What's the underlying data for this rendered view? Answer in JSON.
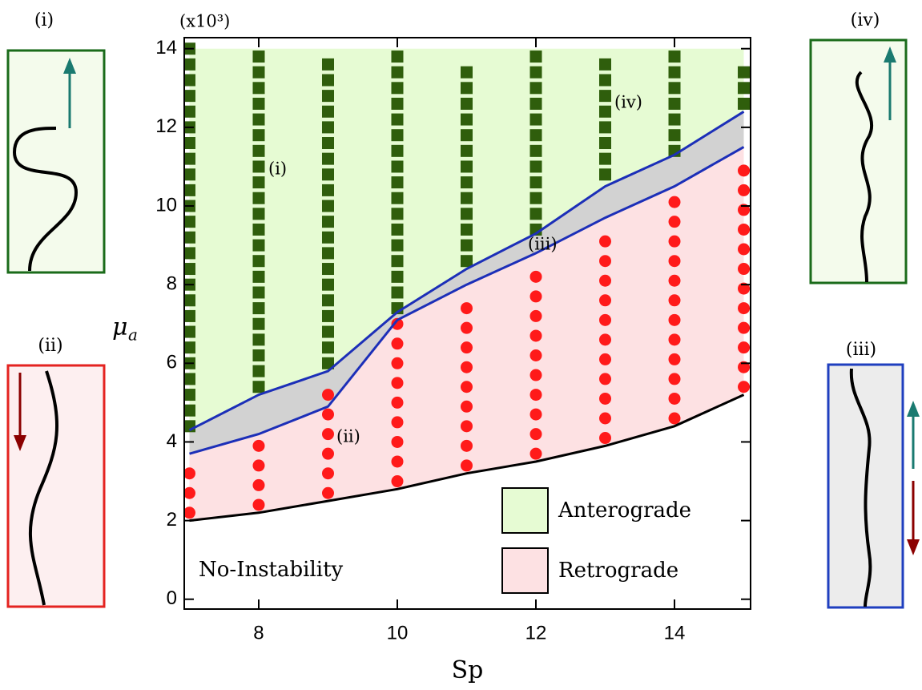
{
  "chart_data": {
    "type": "phase",
    "xlabel": "Sp",
    "ylabel": "μ",
    "ylabel_subscript": "a",
    "scale_label": "(x10³)",
    "xlim": [
      6.925,
      15.098
    ],
    "ylim": [
      -0.25,
      14.28
    ],
    "xticks": [
      8,
      10,
      12,
      14
    ],
    "yticks": [
      0,
      2,
      4,
      6,
      8,
      10,
      12,
      14
    ],
    "regions": [
      {
        "name": "Anterograde",
        "fill": "#e6fbd3"
      },
      {
        "name": "Retrograde",
        "fill": "#fde1e3"
      }
    ],
    "gap_fill": "#d2d2d2",
    "square_color": "#2f5e0c",
    "dot_color": "#ff1a1a",
    "curve_x": [
      7,
      8,
      9,
      10,
      11,
      12,
      13,
      14,
      15
    ],
    "curves": [
      {
        "color": "#000000",
        "y": [
          2.0,
          2.2,
          2.5,
          2.8,
          3.2,
          3.5,
          3.9,
          4.4,
          5.2
        ]
      },
      {
        "color": "#1c2fb8",
        "y": [
          3.7,
          4.2,
          4.9,
          7.1,
          8.0,
          8.8,
          9.7,
          10.5,
          11.5
        ]
      },
      {
        "color": "#1c2fb8",
        "y": [
          4.3,
          5.2,
          5.8,
          7.3,
          8.4,
          9.3,
          10.5,
          11.3,
          12.4
        ]
      }
    ],
    "anterograde_points": [
      {
        "x": 7,
        "y": [
          4.4,
          4.8,
          5.2,
          5.6,
          6.0,
          6.4,
          6.8,
          7.2,
          7.6,
          8.0,
          8.4,
          8.8,
          9.2,
          9.6,
          10.0,
          10.4,
          10.8,
          11.2,
          11.6,
          12.0,
          12.4,
          12.8,
          13.2,
          13.6,
          14.0
        ]
      },
      {
        "x": 8,
        "y": [
          5.4,
          5.8,
          6.2,
          6.6,
          7.0,
          7.4,
          7.8,
          8.2,
          8.6,
          9.0,
          9.4,
          9.8,
          10.2,
          10.6,
          11.0,
          11.4,
          11.8,
          12.2,
          12.6,
          13.0,
          13.4,
          13.8
        ]
      },
      {
        "x": 9,
        "y": [
          6.0,
          6.4,
          6.8,
          7.2,
          7.6,
          8.0,
          8.4,
          8.8,
          9.2,
          9.6,
          10.0,
          10.4,
          10.8,
          11.2,
          11.6,
          12.0,
          12.4,
          12.8,
          13.2,
          13.6
        ]
      },
      {
        "x": 10,
        "y": [
          7.4,
          7.8,
          8.2,
          8.6,
          9.0,
          9.4,
          9.8,
          10.2,
          10.6,
          11.0,
          11.4,
          11.8,
          12.2,
          12.6,
          13.0,
          13.4,
          13.8
        ]
      },
      {
        "x": 11,
        "y": [
          8.6,
          9.0,
          9.4,
          9.8,
          10.2,
          10.6,
          11.0,
          11.4,
          11.8,
          12.2,
          12.6,
          13.0,
          13.4
        ]
      },
      {
        "x": 12,
        "y": [
          9.4,
          9.8,
          10.2,
          10.6,
          11.0,
          11.4,
          11.8,
          12.2,
          12.6,
          13.0,
          13.4,
          13.8
        ]
      },
      {
        "x": 13,
        "y": [
          10.8,
          11.2,
          11.6,
          12.0,
          12.4,
          12.8,
          13.2,
          13.6
        ]
      },
      {
        "x": 14,
        "y": [
          11.4,
          11.8,
          12.2,
          12.6,
          13.0,
          13.4,
          13.8
        ]
      },
      {
        "x": 15,
        "y": [
          12.6,
          13.0,
          13.4
        ]
      }
    ],
    "retrograde_points": [
      {
        "x": 7,
        "y": [
          2.2,
          2.7,
          3.2
        ]
      },
      {
        "x": 8,
        "y": [
          2.4,
          2.9,
          3.4,
          3.9
        ]
      },
      {
        "x": 9,
        "y": [
          2.7,
          3.2,
          3.7,
          4.2,
          4.7,
          5.2
        ]
      },
      {
        "x": 10,
        "y": [
          3.0,
          3.5,
          4.0,
          4.5,
          5.0,
          5.5,
          6.0,
          6.5,
          7.0
        ]
      },
      {
        "x": 11,
        "y": [
          3.4,
          3.9,
          4.4,
          4.9,
          5.4,
          5.9,
          6.4,
          6.9,
          7.4
        ]
      },
      {
        "x": 12,
        "y": [
          3.7,
          4.2,
          4.7,
          5.2,
          5.7,
          6.2,
          6.7,
          7.2,
          7.7,
          8.2
        ]
      },
      {
        "x": 13,
        "y": [
          4.1,
          4.6,
          5.1,
          5.6,
          6.1,
          6.6,
          7.1,
          7.6,
          8.1,
          8.6,
          9.1
        ]
      },
      {
        "x": 14,
        "y": [
          4.6,
          5.1,
          5.6,
          6.1,
          6.6,
          7.1,
          7.6,
          8.1,
          8.6,
          9.1,
          9.6,
          10.1
        ]
      },
      {
        "x": 15,
        "y": [
          5.4,
          5.9,
          6.4,
          6.9,
          7.4,
          7.9,
          8.4,
          8.9,
          9.4,
          9.9,
          10.4,
          10.9
        ]
      }
    ],
    "annotations": [
      "(i)",
      "(ii)",
      "(iii)",
      "(iv)",
      "No-Instability"
    ]
  },
  "panels": [
    {
      "label": "(i)"
    },
    {
      "label": "(ii)"
    },
    {
      "label": "(iv)"
    },
    {
      "label": "(iii)"
    }
  ]
}
